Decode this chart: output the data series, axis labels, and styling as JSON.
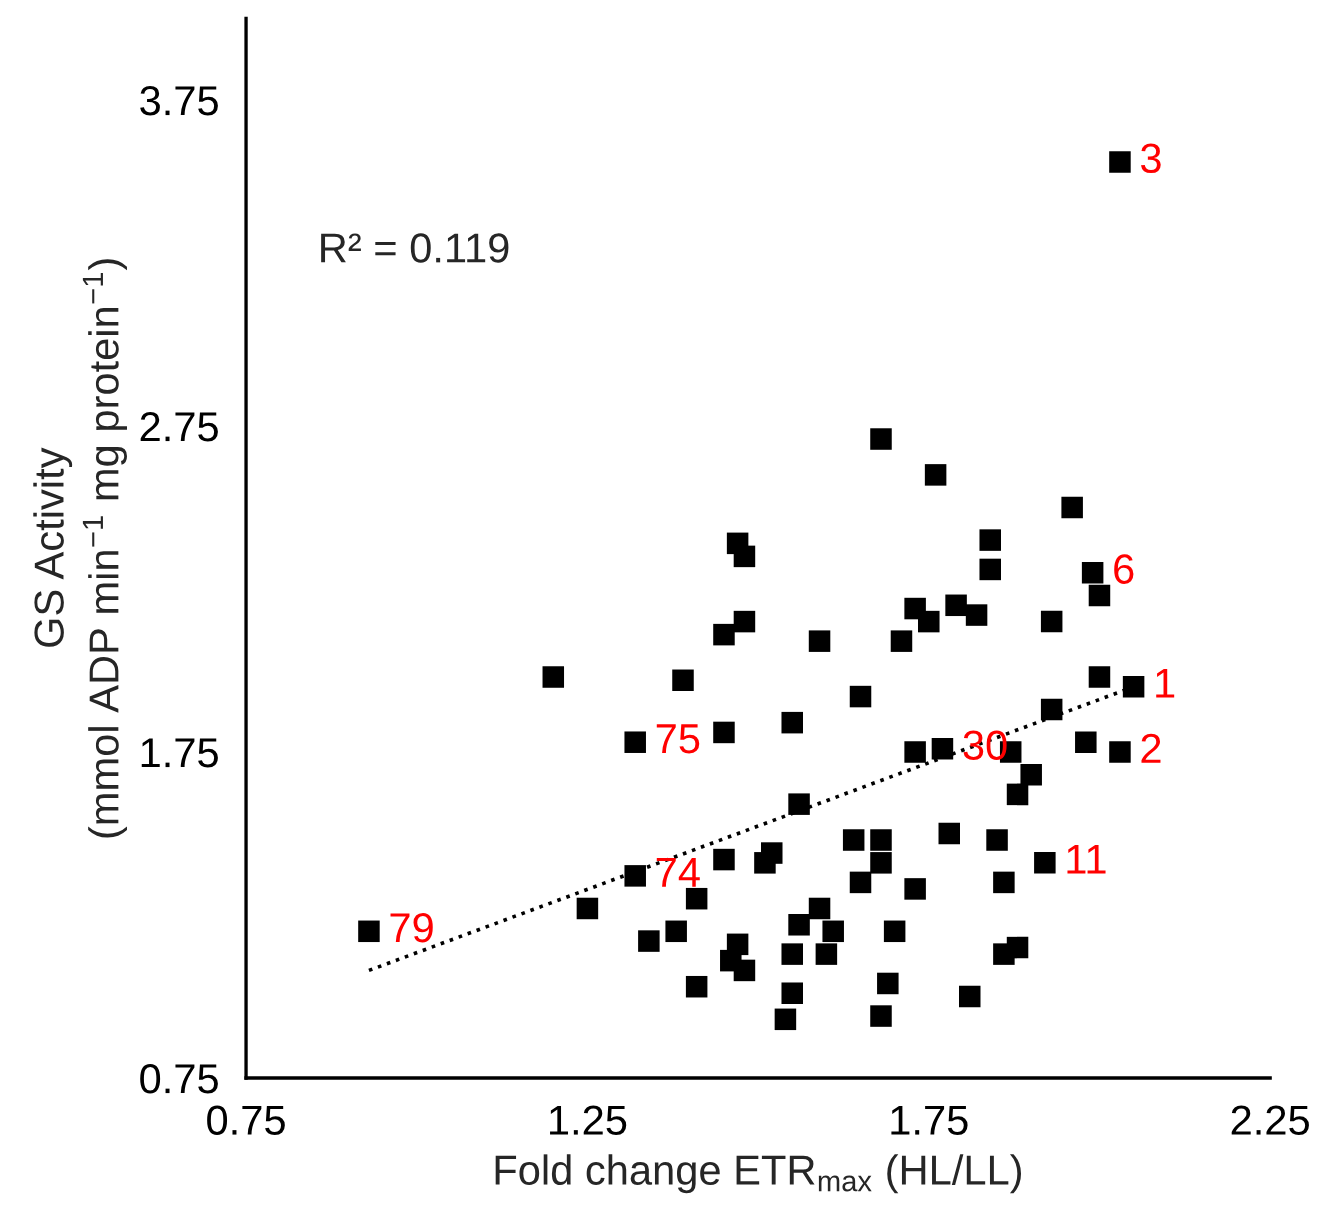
{
  "chart_data": {
    "type": "scatter",
    "xlabel": "Fold change ETR$_{max}$ (HL/LL)",
    "ylabel": "GS Activity\n(mmol ADP min$^{−1}$ mg protein$^{−1}$)",
    "xlim": [
      0.75,
      2.25
    ],
    "xticks": [
      0.75,
      1.25,
      1.75,
      2.25
    ],
    "ylim": [
      0.75,
      4.0
    ],
    "yticks": [
      0.75,
      1.75,
      2.75,
      3.75
    ],
    "grid": false,
    "legend": false,
    "series": [
      {
        "color": "#000000",
        "marker": "square",
        "x": [
          0.93,
          1.2,
          1.25,
          1.32,
          1.32,
          1.34,
          1.38,
          1.39,
          1.41,
          1.41,
          1.45,
          1.45,
          1.45,
          1.48,
          1.47,
          1.48,
          1.47,
          1.46,
          1.48,
          1.51,
          1.52,
          1.55,
          1.56,
          1.56,
          1.55,
          1.55,
          1.54,
          1.59,
          2.03,
          1.68,
          1.76,
          1.96,
          1.84,
          1.84,
          1.99,
          2.0,
          1.73,
          1.75,
          1.79,
          1.82,
          1.93,
          1.71,
          2.0,
          2.05,
          1.65,
          1.93,
          1.73,
          1.77,
          1.87,
          1.98,
          2.03,
          1.9,
          1.88,
          1.64,
          1.68,
          1.78,
          1.85,
          1.68,
          1.92,
          1.65,
          1.73,
          1.86,
          1.59,
          1.61,
          1.7,
          1.6,
          1.86,
          1.88,
          1.69,
          1.81,
          1.68
        ],
        "values": [
          1.2,
          1.98,
          1.27,
          1.78,
          1.37,
          1.17,
          1.2,
          1.97,
          1.03,
          1.3,
          1.81,
          1.42,
          2.11,
          2.15,
          2.39,
          2.35,
          1.16,
          1.11,
          1.08,
          1.41,
          1.44,
          1.84,
          1.59,
          1.22,
          1.13,
          1.01,
          0.93,
          2.09,
          3.56,
          2.71,
          2.6,
          2.5,
          2.4,
          2.31,
          2.3,
          2.23,
          2.19,
          2.15,
          2.2,
          2.17,
          2.15,
          2.09,
          1.98,
          1.95,
          1.92,
          1.88,
          1.75,
          1.76,
          1.75,
          1.78,
          1.75,
          1.68,
          1.62,
          1.48,
          1.48,
          1.5,
          1.48,
          1.41,
          1.41,
          1.35,
          1.33,
          1.35,
          1.27,
          1.2,
          1.2,
          1.13,
          1.13,
          1.15,
          1.04,
          1.0,
          0.94
        ]
      },
      {
        "type": "line",
        "color": "#000000",
        "line_style": "dotted",
        "marker": "none",
        "x": [
          0.93,
          2.05
        ],
        "values": [
          1.08,
          1.95
        ]
      }
    ],
    "annotations": [
      "R² = 0.119",
      {
        "text": "79",
        "x": 0.93,
        "y": 1.2
      },
      {
        "text": "75",
        "x": 1.32,
        "y": 1.78
      },
      {
        "text": "74",
        "x": 1.32,
        "y": 1.37
      },
      {
        "text": "30",
        "x": 1.77,
        "y": 1.76
      },
      {
        "text": "11",
        "x": 1.92,
        "y": 1.41
      },
      {
        "text": "1",
        "x": 2.05,
        "y": 1.95
      },
      {
        "text": "2",
        "x": 2.03,
        "y": 1.75
      },
      {
        "text": "6",
        "x": 1.99,
        "y": 2.3
      },
      {
        "text": "3",
        "x": 2.03,
        "y": 3.56
      }
    ]
  }
}
